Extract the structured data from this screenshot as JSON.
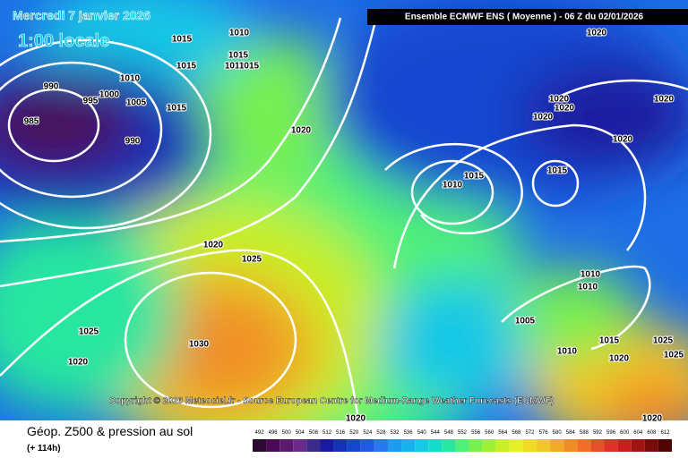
{
  "header": {
    "date": "Mercredi 7 janvier 2026",
    "time": "1:00 locale",
    "model": "Ensemble ECMWF ENS  ( Moyenne )  -  06 Z du 02/01/2026"
  },
  "copyright": "Copyright © 2026 Meteociel.fr - Source European Centre for Medium-Range Weather Forecasts (ECMWF)",
  "legend": {
    "title": "Géop. Z500 & pression au sol",
    "lead": "(+ 114h)",
    "labels": [
      492,
      496,
      500,
      504,
      508,
      512,
      516,
      520,
      524,
      528,
      532,
      536,
      540,
      544,
      548,
      552,
      556,
      560,
      564,
      568,
      572,
      576,
      580,
      584,
      588,
      592,
      596,
      600,
      604,
      608,
      612
    ],
    "colors": [
      "#2a0a2e",
      "#4a0a55",
      "#5c1a6e",
      "#6a2a8a",
      "#3a2a8c",
      "#1a1aa0",
      "#1432b8",
      "#1446d0",
      "#1e5ae6",
      "#2878f0",
      "#1e9af0",
      "#14b4f0",
      "#14c8e6",
      "#14dcc8",
      "#28e6a0",
      "#50f078",
      "#78f050",
      "#a0f032",
      "#c8f028",
      "#e6f028",
      "#f0dc28",
      "#f0c828",
      "#f0aa28",
      "#f08c28",
      "#f06e28",
      "#e65028",
      "#dc3228",
      "#c81e1e",
      "#a01414",
      "#780a0a",
      "#500505"
    ]
  },
  "isobars": [
    "1015",
    "1010",
    "1015",
    "1010",
    "1015",
    "1015",
    "1010",
    "990",
    "995",
    "1000",
    "1005",
    "1015",
    "985",
    "990",
    "1020",
    "1020",
    "1020",
    "1020",
    "1020",
    "1020",
    "1020",
    "1015",
    "1015",
    "1010",
    "1020",
    "1025",
    "1010",
    "1010",
    "1005",
    "1015",
    "1025",
    "1020",
    "1030",
    "1010",
    "1020",
    "1025",
    "1025",
    "1020",
    "1020"
  ]
}
